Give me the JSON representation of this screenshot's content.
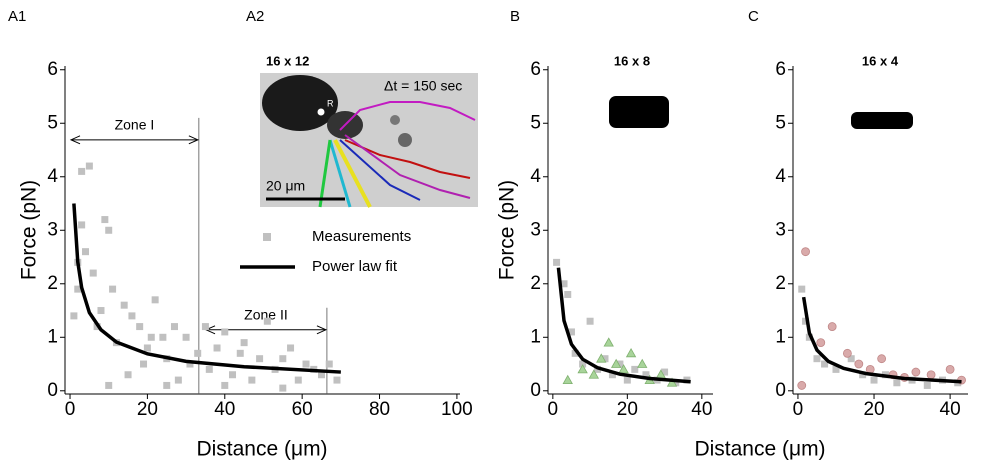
{
  "inset": {
    "label": "A2",
    "title": "16 x 12",
    "time": "Δt = 150 sec",
    "scale": "20 μm",
    "marker": "R"
  },
  "chart_data": [
    {
      "type": "scatter",
      "panel": "A1",
      "xlabel": "Distance (μm)",
      "ylabel": "Force (pN)",
      "xlim": [
        -1.3,
        100.8
      ],
      "ylim": [
        -0.06,
        6.07
      ],
      "xticks": [
        0,
        20,
        40,
        60,
        80,
        100
      ],
      "yticks": [
        0,
        1,
        2,
        3,
        4,
        5,
        6
      ],
      "legend": "center",
      "zones": [
        {
          "label": "Zone I",
          "from": 0,
          "to": 33.3,
          "y": 4.69
        },
        {
          "label": "Zone II",
          "from": 34.9,
          "to": 66.4,
          "y": 1.14
        }
      ],
      "series": [
        {
          "name": "Measurements",
          "color": "#c0c0c0",
          "marker": "square",
          "x": [
            1,
            2,
            3,
            4,
            5,
            3,
            6,
            2,
            8,
            9,
            10,
            7,
            11,
            12,
            14,
            15,
            16,
            18,
            19,
            20,
            21,
            22,
            24,
            25,
            27,
            28,
            30,
            31,
            33,
            35,
            36,
            38,
            40,
            42,
            44,
            45,
            47,
            49,
            51,
            53,
            55,
            57,
            59,
            61,
            63,
            65,
            67,
            69,
            10,
            25,
            40,
            55
          ],
          "values": [
            1.4,
            2.4,
            3.1,
            2.6,
            4.2,
            4.1,
            2.2,
            1.9,
            1.5,
            3.2,
            3.0,
            1.2,
            1.9,
            0.9,
            1.6,
            0.3,
            1.4,
            1.2,
            0.5,
            0.8,
            1.0,
            1.7,
            1.0,
            0.6,
            1.2,
            0.2,
            1.0,
            0.5,
            0.7,
            1.2,
            0.4,
            0.8,
            1.1,
            0.3,
            0.7,
            0.9,
            0.2,
            0.6,
            1.3,
            0.4,
            0.6,
            0.8,
            0.2,
            0.5,
            0.4,
            0.3,
            0.5,
            0.2,
            0.1,
            0.1,
            0.1,
            0.05
          ]
        },
        {
          "name": "Power law fit",
          "color": "#000000",
          "marker": "line",
          "x": [
            1,
            2,
            3,
            5,
            8,
            12,
            20,
            30,
            45,
            70
          ],
          "values": [
            3.5,
            2.41,
            1.93,
            1.46,
            1.14,
            0.91,
            0.69,
            0.55,
            0.45,
            0.35
          ]
        }
      ]
    },
    {
      "type": "scatter",
      "panel": "B",
      "title": "16 x 8",
      "xlabel": "Distance (μm)",
      "ylabel": "Force (pN)",
      "xlim": [
        -1.3,
        43
      ],
      "ylim": [
        -0.06,
        6.07
      ],
      "xticks": [
        0,
        20,
        40
      ],
      "yticks": [
        0,
        1,
        2,
        3,
        4,
        5,
        6
      ],
      "series": [
        {
          "color": "#c0c0c0",
          "marker": "square",
          "x": [
            1,
            3,
            4,
            5,
            6,
            8,
            10,
            12,
            14,
            16,
            18,
            20,
            22,
            25,
            28,
            30,
            33,
            36
          ],
          "values": [
            2.4,
            2.0,
            1.8,
            1.1,
            0.7,
            0.5,
            1.3,
            0.4,
            0.6,
            0.3,
            0.5,
            0.2,
            0.4,
            0.3,
            0.2,
            0.35,
            0.15,
            0.2
          ]
        },
        {
          "color": "#a8d49a",
          "marker": "triangle",
          "x": [
            4,
            8,
            11,
            13,
            15,
            17,
            19,
            21,
            24,
            26,
            29,
            32
          ],
          "values": [
            0.2,
            0.4,
            0.3,
            0.6,
            0.9,
            0.5,
            0.4,
            0.7,
            0.5,
            0.2,
            0.3,
            0.15
          ]
        },
        {
          "color": "#000000",
          "marker": "line",
          "x": [
            1.5,
            3,
            5,
            8,
            12,
            18,
            26,
            37
          ],
          "values": [
            2.3,
            1.31,
            0.87,
            0.59,
            0.43,
            0.31,
            0.23,
            0.17
          ]
        }
      ]
    },
    {
      "type": "scatter",
      "panel": "C",
      "title": "16 x 4",
      "xlim": [
        -1.3,
        44.7
      ],
      "ylim": [
        -0.06,
        6.07
      ],
      "xticks": [
        0,
        20,
        40
      ],
      "yticks": [
        0,
        1,
        2,
        3,
        4,
        5,
        6
      ],
      "series": [
        {
          "color": "#c0c0c0",
          "marker": "square",
          "x": [
            1,
            2,
            3,
            5,
            7,
            10,
            14,
            17,
            20,
            23,
            26,
            30,
            34,
            38,
            42
          ],
          "values": [
            1.9,
            1.3,
            1.0,
            0.6,
            0.5,
            0.4,
            0.6,
            0.3,
            0.2,
            0.3,
            0.15,
            0.2,
            0.1,
            0.2,
            0.15
          ]
        },
        {
          "color": "#d9aaaa",
          "marker": "circle",
          "x": [
            1,
            2,
            6,
            9,
            13,
            16,
            19,
            22,
            25,
            28,
            31,
            35,
            40,
            43
          ],
          "values": [
            0.1,
            2.6,
            0.9,
            1.2,
            0.7,
            0.5,
            0.4,
            0.6,
            0.3,
            0.25,
            0.35,
            0.3,
            0.4,
            0.2
          ]
        },
        {
          "color": "#000000",
          "marker": "line",
          "x": [
            1.5,
            3,
            5,
            8,
            12,
            18,
            28,
            43
          ],
          "values": [
            1.75,
            1.08,
            0.76,
            0.55,
            0.42,
            0.32,
            0.23,
            0.17
          ]
        }
      ]
    }
  ]
}
